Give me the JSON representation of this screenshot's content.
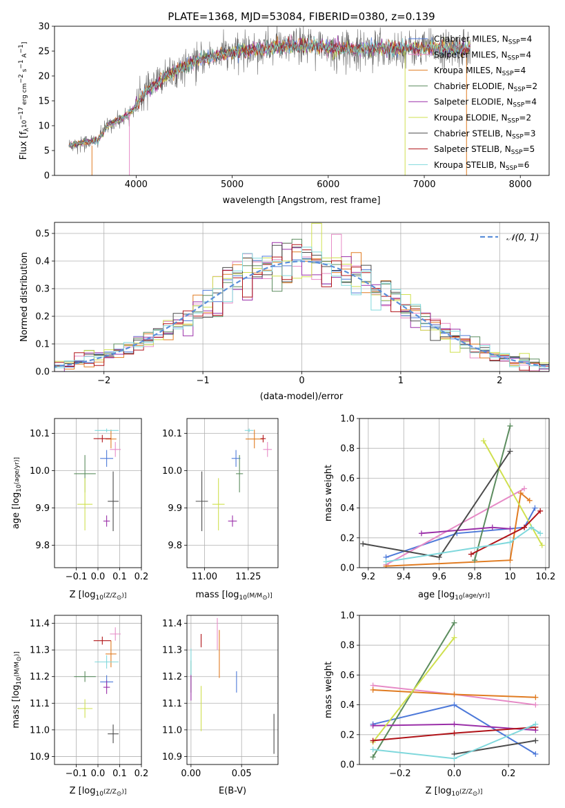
{
  "figure_title": "PLATE=1368, MJD=53084, FIBERID=0380, z=0.139",
  "colors": {
    "Chabrier MILES": "#4d79d9",
    "Salpeter MILES": "#e68ac6",
    "Kroupa MILES": "#e07b21",
    "Chabrier ELODIE": "#5b8c5e",
    "Salpeter ELODIE": "#9a2fa8",
    "Kroupa ELODIE": "#cfe04e",
    "Chabrier STELIB": "#4a4a4a",
    "Salpeter STELIB": "#b01217",
    "Kroupa STELIB": "#7fd8dc"
  },
  "chart_data": [
    {
      "id": "spectrum",
      "type": "line",
      "xlabel": "wavelength [Angstrom, rest frame]",
      "ylabel_parts": [
        "Flux [f",
        "λ",
        "10",
        "−17",
        " erg cm",
        "−2",
        " s",
        "−1",
        " A",
        "−1",
        "]"
      ],
      "xlim": [
        3150,
        8300
      ],
      "ylim": [
        0,
        30
      ],
      "xticks": [
        4000,
        5000,
        6000,
        7000,
        8000
      ],
      "yticks": [
        0,
        5,
        10,
        15,
        20,
        25,
        30
      ],
      "legend_position": "right",
      "legend": [
        {
          "name": "Chabrier MILES",
          "n": "4"
        },
        {
          "name": "Salpeter MILES",
          "n": "4"
        },
        {
          "name": "Kroupa MILES",
          "n": "4"
        },
        {
          "name": "Chabrier ELODIE",
          "n": "2"
        },
        {
          "name": "Salpeter ELODIE",
          "n": "4"
        },
        {
          "name": "Kroupa ELODIE",
          "n": "2"
        },
        {
          "name": "Chabrier STELIB",
          "n": "3"
        },
        {
          "name": "Salpeter STELIB",
          "n": "5"
        },
        {
          "name": "Kroupa STELIB",
          "n": "6"
        }
      ],
      "continuum_wavelength": [
        3300,
        3400,
        3500,
        3600,
        3700,
        3800,
        3900,
        4000,
        4100,
        4200,
        4300,
        4400,
        4500,
        4700,
        4900,
        5100,
        5300,
        5500,
        5700,
        5900,
        6100,
        6300,
        6500,
        6700,
        6900,
        7100,
        7300,
        7500
      ],
      "continuum_flux": [
        6,
        6.5,
        6.8,
        7,
        10,
        11,
        12,
        14,
        17,
        18,
        20,
        21,
        22,
        23.5,
        24.5,
        25,
        25.5,
        26,
        26,
        26,
        25.5,
        25.5,
        25.5,
        25.5,
        25.5,
        25.5,
        25.5,
        25.5
      ],
      "model_edges": [
        {
          "series": "Kroupa MILES",
          "wavelength": 3540,
          "flux_top": 6
        },
        {
          "series": "Salpeter MILES",
          "wavelength": 3930,
          "flux_top": 12
        },
        {
          "series": "Kroupa ELODIE",
          "wavelength": 6800,
          "flux_top": 25
        },
        {
          "series": "Kroupa MILES",
          "wavelength": 7440,
          "flux_top": 25
        }
      ]
    },
    {
      "id": "residual_distribution",
      "type": "step",
      "xlabel": "(data-model)/error",
      "ylabel": "Normed distribution",
      "xlim": [
        -2.5,
        2.5
      ],
      "ylim": [
        0,
        0.54
      ],
      "xticks": [
        -2,
        -1,
        0,
        1,
        2
      ],
      "xtick_labels": [
        "−2",
        "−1",
        "0",
        "1",
        "2"
      ],
      "yticks": [
        0.0,
        0.1,
        0.2,
        0.3,
        0.4,
        0.5
      ],
      "grid": true,
      "legend_position": "top-right",
      "reference": {
        "label": "𝒩(0, 1)",
        "mean": 0,
        "sigma": 1
      },
      "bin_width": 0.1
    },
    {
      "id": "age_vs_Z",
      "type": "errorbar",
      "xlabel_parts": [
        "Z [log",
        "10",
        "(Z/Z",
        "⊙",
        ")]"
      ],
      "ylabel_parts": [
        "age  [log",
        "10",
        "(age/yr)]"
      ],
      "xlim": [
        -0.2,
        0.2
      ],
      "ylim": [
        9.74,
        10.14
      ],
      "xticks": [
        -0.1,
        0.0,
        0.1,
        0.2
      ],
      "xtick_labels": [
        "−0.1",
        "0.0",
        "0.1",
        "0.2"
      ],
      "yticks": [
        9.8,
        9.9,
        10.0,
        10.1
      ],
      "grid": true
    },
    {
      "id": "age_vs_mass",
      "type": "errorbar",
      "xlabel_parts": [
        "mass [log",
        "10",
        "(M/M",
        "⊙",
        ")]"
      ],
      "xlim": [
        10.9,
        11.42
      ],
      "ylim": [
        9.74,
        10.14
      ],
      "xticks": [
        11.0,
        11.25
      ],
      "xtick_labels": [
        "11.00",
        "11.25"
      ],
      "yticks": [
        9.8,
        9.9,
        10.0,
        10.1
      ],
      "grid": true
    },
    {
      "id": "weight_vs_age",
      "type": "line",
      "xlabel_parts": [
        "age  [log",
        "10",
        "(age/yr)]"
      ],
      "ylabel": "mass weight",
      "xlim": [
        9.15,
        10.22
      ],
      "ylim": [
        0,
        1
      ],
      "xticks": [
        9.2,
        9.4,
        9.6,
        9.8,
        10.0,
        10.2
      ],
      "yticks": [
        0.0,
        0.2,
        0.4,
        0.6,
        0.8,
        1.0
      ],
      "grid": true
    },
    {
      "id": "mass_vs_Z",
      "type": "errorbar",
      "xlabel_parts": [
        "Z [log",
        "10",
        "(Z/Z",
        "⊙",
        ")]"
      ],
      "ylabel_parts": [
        "mass [log",
        "10",
        "(M/M",
        "⊙",
        ")]"
      ],
      "xlim": [
        -0.2,
        0.2
      ],
      "ylim": [
        10.87,
        11.43
      ],
      "xticks": [
        -0.1,
        0.0,
        0.1,
        0.2
      ],
      "xtick_labels": [
        "−0.1",
        "0.0",
        "0.1",
        "0.2"
      ],
      "yticks": [
        10.9,
        11.0,
        11.1,
        11.2,
        11.3,
        11.4
      ],
      "grid": true
    },
    {
      "id": "mass_vs_ebv",
      "type": "errorbar",
      "xlabel": "E(B-V)",
      "xlim": [
        -0.004,
        0.086
      ],
      "ylim": [
        10.87,
        11.43
      ],
      "xticks": [
        0.0,
        0.05
      ],
      "xtick_labels": [
        "0.00",
        "0.05"
      ],
      "yticks": [
        10.9,
        11.0,
        11.1,
        11.2,
        11.3,
        11.4
      ],
      "grid": true
    },
    {
      "id": "weight_vs_Z",
      "type": "line",
      "xlabel_parts": [
        "Z [log",
        "10",
        "(Z/Z",
        "⊙",
        ")]"
      ],
      "ylabel": "mass weight",
      "xlim": [
        -0.35,
        0.35
      ],
      "ylim": [
        0,
        1
      ],
      "xticks": [
        -0.2,
        0.0,
        0.2
      ],
      "xtick_labels": [
        "−0.2",
        "0.0",
        "0.2"
      ],
      "yticks": [
        0.0,
        0.2,
        0.4,
        0.6,
        0.8,
        1.0
      ],
      "grid": true
    }
  ],
  "fits": [
    {
      "name": "Chabrier MILES",
      "Z": 0.04,
      "Zerr": 0.06,
      "age": 10.033,
      "ageerr": 0.045,
      "mass": 11.18,
      "masserr": 0.05,
      "ebv": 0.045,
      "ebverr": 0.08,
      "ages": [
        9.3,
        9.7,
        10.08,
        10.14
      ],
      "age_weights": [
        0.07,
        0.23,
        0.27,
        0.4
      ],
      "Zs": [
        -0.3,
        0.0,
        0.3
      ],
      "Z_weights": [
        0.27,
        0.4,
        0.07
      ]
    },
    {
      "name": "Salpeter MILES",
      "Z": 0.08,
      "Zerr": 0.05,
      "age": 10.057,
      "ageerr": 0.04,
      "mass": 11.36,
      "masserr": 0.05,
      "ebv": 0.026,
      "ebverr": 0.12,
      "ages": [
        9.3,
        10.08
      ],
      "age_weights": [
        0.02,
        0.53
      ],
      "Zs": [
        -0.3,
        0.0,
        0.3
      ],
      "Z_weights": [
        0.53,
        0.47,
        0.4
      ]
    },
    {
      "name": "Kroupa MILES",
      "Z": 0.06,
      "Zerr": 0.05,
      "age": 10.085,
      "ageerr": 0.05,
      "mass": 11.285,
      "masserr": 0.1,
      "ebv": 0.028,
      "ebverr": 0.18,
      "ages": [
        9.3,
        10.0,
        10.06,
        10.11
      ],
      "age_weights": [
        0.01,
        0.05,
        0.5,
        0.45
      ],
      "Zs": [
        -0.3,
        0.0,
        0.3
      ],
      "Z_weights": [
        0.5,
        0.47,
        0.45
      ]
    },
    {
      "name": "Chabrier ELODIE",
      "Z": -0.06,
      "Zerr": 0.1,
      "age": 9.992,
      "ageerr": 0.1,
      "mass": 11.2,
      "masserr": 0.04,
      "ebv": 0.0,
      "ebverr": 0.12,
      "ages": [
        9.8,
        10.0
      ],
      "age_weights": [
        0.05,
        0.95
      ],
      "Zs": [
        -0.3,
        0.0
      ],
      "Z_weights": [
        0.05,
        0.95
      ]
    },
    {
      "name": "Salpeter ELODIE",
      "Z": 0.04,
      "Zerr": 0.03,
      "age": 9.865,
      "ageerr": 0.03,
      "mass": 11.16,
      "masserr": 0.05,
      "ebv": 0.0,
      "ebverr": 0.1,
      "ages": [
        9.5,
        9.9,
        10.0
      ],
      "age_weights": [
        0.23,
        0.27,
        0.26
      ],
      "Zs": [
        -0.3,
        0.0,
        0.3
      ],
      "Z_weights": [
        0.26,
        0.27,
        0.23
      ]
    },
    {
      "name": "Kroupa ELODIE",
      "Z": -0.06,
      "Zerr": 0.07,
      "age": 9.91,
      "ageerr": 0.14,
      "mass": 11.08,
      "masserr": 0.07,
      "ebv": 0.01,
      "ebverr": 0.17,
      "ages": [
        9.85,
        10.18
      ],
      "age_weights": [
        0.85,
        0.15
      ],
      "Zs": [
        -0.3,
        0.0
      ],
      "Z_weights": [
        0.15,
        0.85
      ]
    },
    {
      "name": "Chabrier STELIB",
      "Z": 0.07,
      "Zerr": 0.05,
      "age": 9.918,
      "ageerr": 0.16,
      "mass": 10.985,
      "masserr": 0.07,
      "ebv": 0.082,
      "ebverr": 0.15,
      "ages": [
        9.17,
        9.6,
        10.0
      ],
      "age_weights": [
        0.16,
        0.07,
        0.78
      ],
      "Zs": [
        0.0,
        0.3
      ],
      "Z_weights": [
        0.07,
        0.16
      ]
    },
    {
      "name": "Salpeter STELIB",
      "Z": 0.02,
      "Zerr": 0.08,
      "age": 10.086,
      "ageerr": 0.02,
      "mass": 11.335,
      "masserr": 0.03,
      "ebv": 0.01,
      "ebverr": 0.05,
      "ages": [
        9.78,
        10.08,
        10.17
      ],
      "age_weights": [
        0.09,
        0.27,
        0.38
      ],
      "Zs": [
        -0.3,
        0.0,
        0.3
      ],
      "Z_weights": [
        0.16,
        0.21,
        0.25
      ]
    },
    {
      "name": "Kroupa STELIB",
      "Z": 0.04,
      "Zerr": 0.11,
      "age": 10.108,
      "ageerr": 0.01,
      "mass": 11.255,
      "masserr": 0.05,
      "ebv": 0.0,
      "ebverr": 0.1,
      "ages": [
        9.3,
        10.0,
        10.12,
        10.17
      ],
      "age_weights": [
        0.04,
        0.17,
        0.27,
        0.23
      ],
      "Zs": [
        -0.3,
        0.0,
        0.3
      ],
      "Z_weights": [
        0.1,
        0.04,
        0.27
      ]
    }
  ]
}
